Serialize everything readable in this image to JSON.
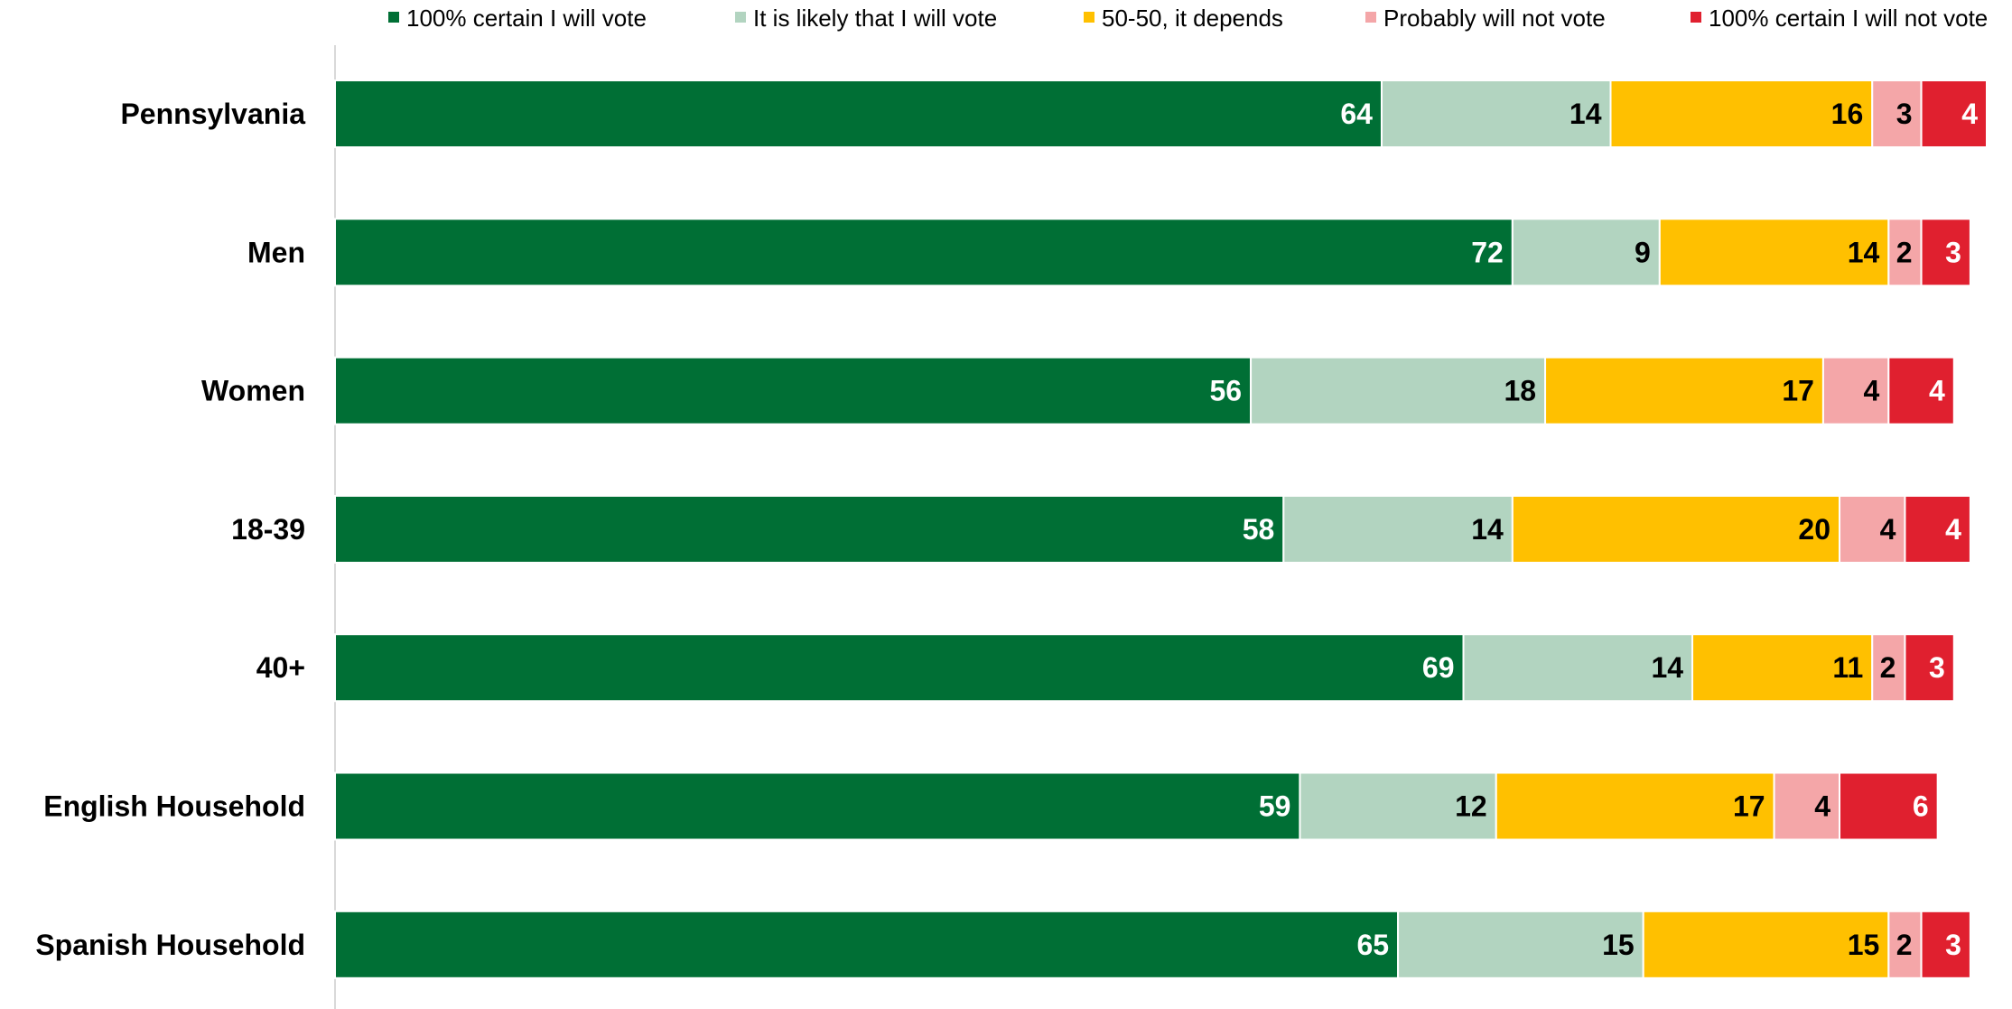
{
  "chart_data": {
    "type": "bar",
    "orientation": "horizontal",
    "stacked": true,
    "title": "",
    "xlabel": "",
    "ylabel": "",
    "xlim": [
      0,
      101
    ],
    "grid": false,
    "legend_position": "top",
    "categories": [
      "Pennsylvania",
      "Men",
      "Women",
      "18-39",
      "40+",
      "English Household",
      "Spanish Household"
    ],
    "series": [
      {
        "name": "100% certain I will vote",
        "color": "#006F35",
        "label_color": "#FFFFFF",
        "values": [
          64,
          72,
          56,
          58,
          69,
          59,
          65
        ]
      },
      {
        "name": "It is likely that I will vote",
        "color": "#B2D4C0",
        "label_color": "#000000",
        "values": [
          14,
          9,
          18,
          14,
          14,
          12,
          15
        ]
      },
      {
        "name": "50-50, it depends",
        "color": "#FFC000",
        "label_color": "#000000",
        "values": [
          16,
          14,
          17,
          20,
          11,
          17,
          15
        ]
      },
      {
        "name": "Probably will not vote",
        "color": "#F4A6A8",
        "label_color": "#000000",
        "values": [
          3,
          2,
          4,
          4,
          2,
          4,
          2
        ]
      },
      {
        "name": "100% certain I will not vote",
        "color": "#E0202F",
        "label_color": "#FFFFFF",
        "values": [
          4,
          3,
          4,
          4,
          3,
          6,
          3
        ]
      }
    ]
  }
}
